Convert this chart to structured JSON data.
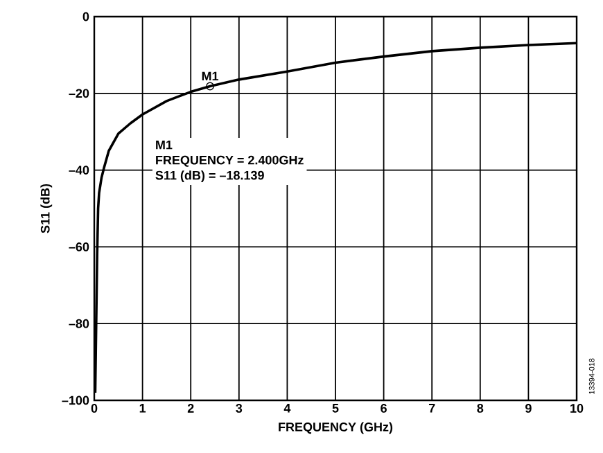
{
  "chart_data": {
    "type": "line",
    "xlabel": "FREQUENCY (GHz)",
    "ylabel": "S11 (dB)",
    "xlim": [
      0,
      10
    ],
    "ylim": [
      -100,
      0
    ],
    "xticks": [
      0,
      1,
      2,
      3,
      4,
      5,
      6,
      7,
      8,
      9,
      10
    ],
    "yticks": [
      {
        "value": -100,
        "label": "–100"
      },
      {
        "value": -80,
        "label": "–80"
      },
      {
        "value": -60,
        "label": "–60"
      },
      {
        "value": -40,
        "label": "–40"
      },
      {
        "value": -20,
        "label": "–20"
      },
      0
    ],
    "grid": true,
    "series": [
      {
        "color": "#000000",
        "x": [
          0.02,
          0.04,
          0.06,
          0.08,
          0.1,
          0.15,
          0.2,
          0.3,
          0.5,
          0.75,
          1,
          1.5,
          2,
          2.4,
          3,
          4,
          5,
          6,
          7,
          8,
          9,
          10
        ],
        "values": [
          -98,
          -80,
          -62,
          -50,
          -46,
          -42,
          -39.5,
          -35,
          -30.5,
          -27.8,
          -25.5,
          -22,
          -19.6,
          -18.139,
          -16.4,
          -14.3,
          -12,
          -10.4,
          -9,
          -8.1,
          -7.4,
          -6.9
        ]
      },
      {
        "type": "scatter",
        "marker": "circle",
        "color": "#000000",
        "x": [
          2.4
        ],
        "values": [
          -18.139
        ]
      }
    ],
    "annotations": [
      {
        "text": "M1",
        "x": 2.4,
        "y": -18.139
      },
      "M1",
      "FREQUENCY = 2.400GHz",
      "S11 (dB) = –18.139",
      "13394-018"
    ]
  }
}
